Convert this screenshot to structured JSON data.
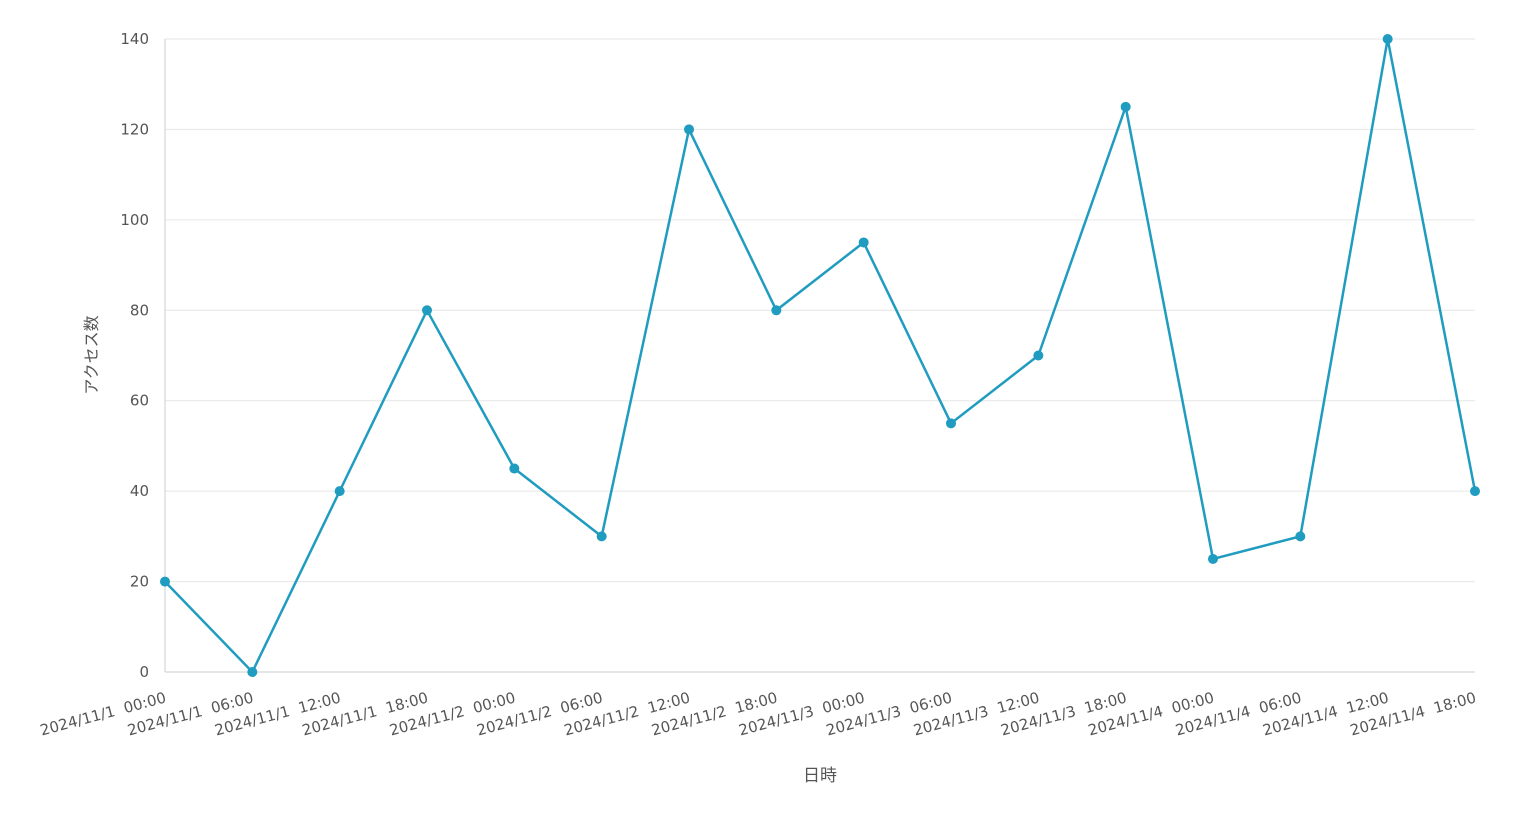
{
  "chart_data": {
    "type": "line",
    "x_label": "日時",
    "y_label": "アクセス数",
    "categories": [
      "2024/11/1  00:00",
      "2024/11/1  06:00",
      "2024/11/1  12:00",
      "2024/11/1  18:00",
      "2024/11/2  00:00",
      "2024/11/2  06:00",
      "2024/11/2  12:00",
      "2024/11/2  18:00",
      "2024/11/3  00:00",
      "2024/11/3  06:00",
      "2024/11/3  12:00",
      "2024/11/3  18:00",
      "2024/11/4  00:00",
      "2024/11/4  06:00",
      "2024/11/4  12:00",
      "2024/11/4  18:00"
    ],
    "values": [
      20,
      0,
      40,
      80,
      45,
      30,
      120,
      80,
      95,
      55,
      70,
      125,
      25,
      30,
      140,
      40
    ],
    "color": "#1f9cbf",
    "ylim": [
      0,
      140
    ],
    "yticks": [
      0,
      20,
      40,
      60,
      80,
      100,
      120,
      140
    ],
    "grid": true
  }
}
